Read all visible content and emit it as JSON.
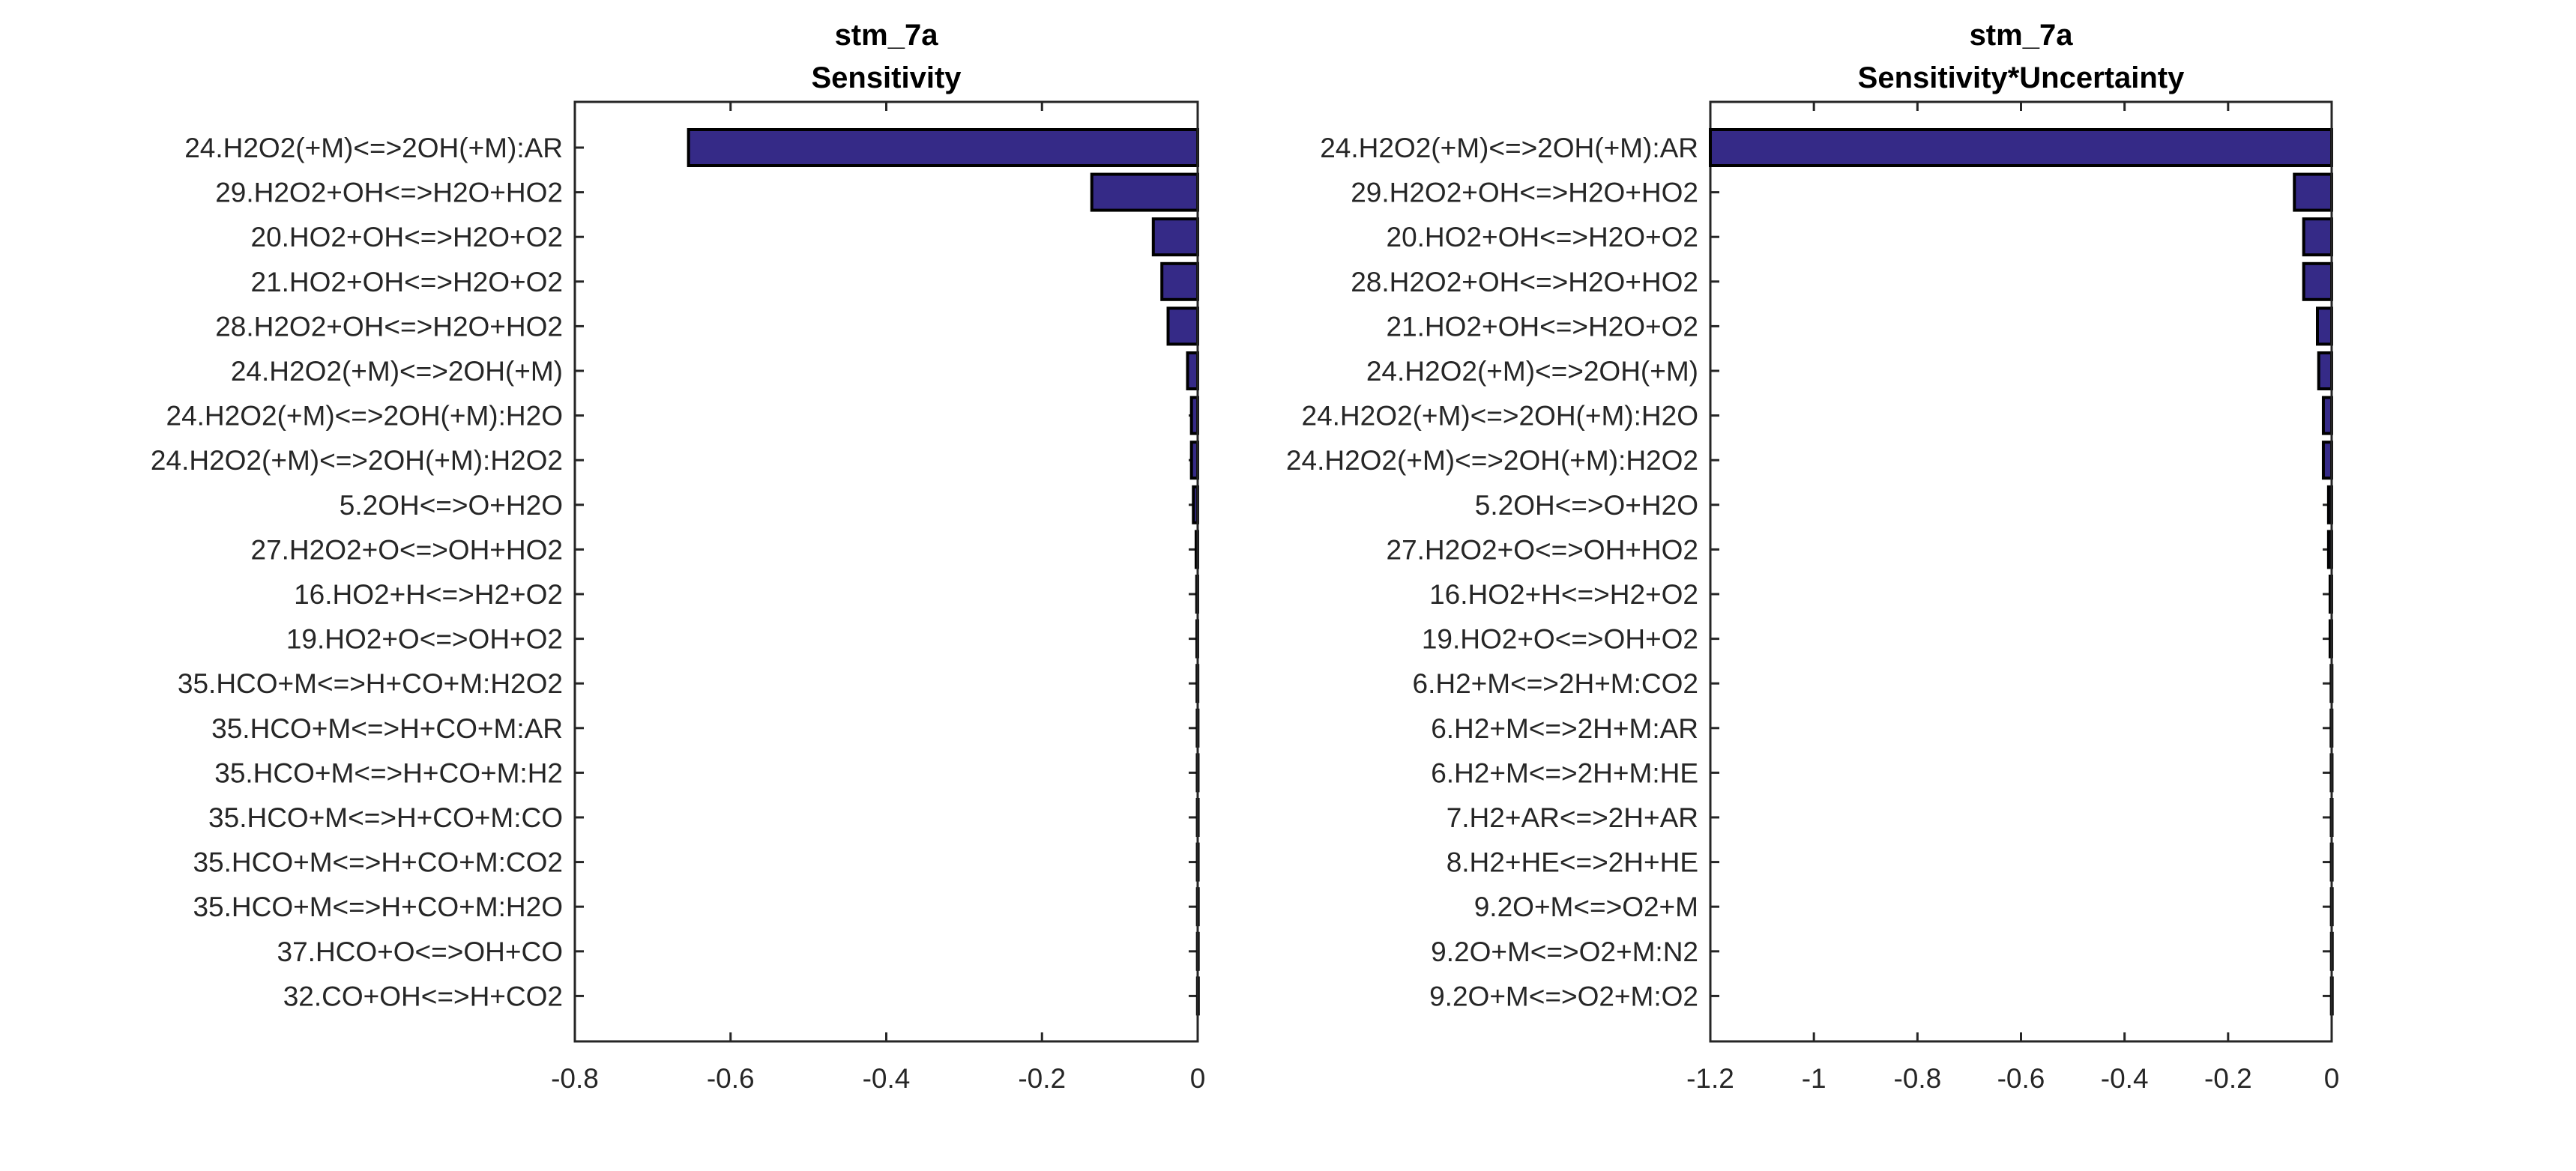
{
  "colors": {
    "bar": "#352a87",
    "edge": "#000000",
    "axis": "#262626"
  },
  "chart_data": [
    {
      "type": "bar",
      "orientation": "horizontal",
      "title": [
        "stm_7a",
        "Sensitivity"
      ],
      "xlim": [
        -0.8,
        0
      ],
      "xticks": [
        -0.8,
        -0.6,
        -0.4,
        -0.2,
        0
      ],
      "xtick_labels": [
        "-0.8",
        "-0.6",
        "-0.4",
        "-0.2",
        "0"
      ],
      "categories": [
        "24.H2O2(+M)<=>2OH(+M):AR",
        "29.H2O2+OH<=>H2O+HO2",
        "20.HO2+OH<=>H2O+O2",
        "21.HO2+OH<=>H2O+O2",
        "28.H2O2+OH<=>H2O+HO2",
        "24.H2O2(+M)<=>2OH(+M)",
        "24.H2O2(+M)<=>2OH(+M):H2O",
        "24.H2O2(+M)<=>2OH(+M):H2O2",
        "5.2OH<=>O+H2O",
        "27.H2O2+O<=>OH+HO2",
        "16.HO2+H<=>H2+O2",
        "19.HO2+O<=>OH+O2",
        "35.HCO+M<=>H+CO+M:H2O2",
        "35.HCO+M<=>H+CO+M:AR",
        "35.HCO+M<=>H+CO+M:H2",
        "35.HCO+M<=>H+CO+M:CO",
        "35.HCO+M<=>H+CO+M:CO2",
        "35.HCO+M<=>H+CO+M:H2O",
        "37.HCO+O<=>OH+CO",
        "32.CO+OH<=>H+CO2"
      ],
      "values": [
        -0.654,
        -0.136,
        -0.057,
        -0.046,
        -0.038,
        -0.013,
        -0.008,
        -0.008,
        -0.0055,
        -0.002,
        -0.0012,
        -0.001,
        -0.0008,
        -0.0006,
        -0.0005,
        -0.0004,
        -0.0004,
        -0.0003,
        -0.0003,
        -0.0002
      ]
    },
    {
      "type": "bar",
      "orientation": "horizontal",
      "title": [
        "stm_7a",
        "Sensitivity*Uncertainty"
      ],
      "xlim": [
        -1.2,
        0
      ],
      "xticks": [
        -1.2,
        -1,
        -0.8,
        -0.6,
        -0.4,
        -0.2,
        0
      ],
      "xtick_labels": [
        "-1.2",
        "-1",
        "-0.8",
        "-0.6",
        "-0.4",
        "-0.2",
        "0"
      ],
      "categories": [
        "24.H2O2(+M)<=>2OH(+M):AR",
        "29.H2O2+OH<=>H2O+HO2",
        "20.HO2+OH<=>H2O+O2",
        "28.H2O2+OH<=>H2O+HO2",
        "21.HO2+OH<=>H2O+O2",
        "24.H2O2(+M)<=>2OH(+M)",
        "24.H2O2(+M)<=>2OH(+M):H2O",
        "24.H2O2(+M)<=>2OH(+M):H2O2",
        "5.2OH<=>O+H2O",
        "27.H2O2+O<=>OH+HO2",
        "16.HO2+H<=>H2+O2",
        "19.HO2+O<=>OH+O2",
        "6.H2+M<=>2H+M:CO2",
        "6.H2+M<=>2H+M:AR",
        "6.H2+M<=>2H+M:HE",
        "7.H2+AR<=>2H+AR",
        "8.H2+HE<=>2H+HE",
        "9.2O+M<=>O2+M",
        "9.2O+M<=>O2+M:N2",
        "9.2O+M<=>O2+M:O2"
      ],
      "values": [
        -1.2,
        -0.072,
        -0.054,
        -0.054,
        -0.0275,
        -0.025,
        -0.016,
        -0.016,
        -0.006,
        -0.006,
        -0.003,
        -0.003,
        -0.001,
        -0.001,
        -0.0008,
        -0.0007,
        -0.0006,
        -0.0005,
        -0.0004,
        -0.0004
      ]
    }
  ]
}
